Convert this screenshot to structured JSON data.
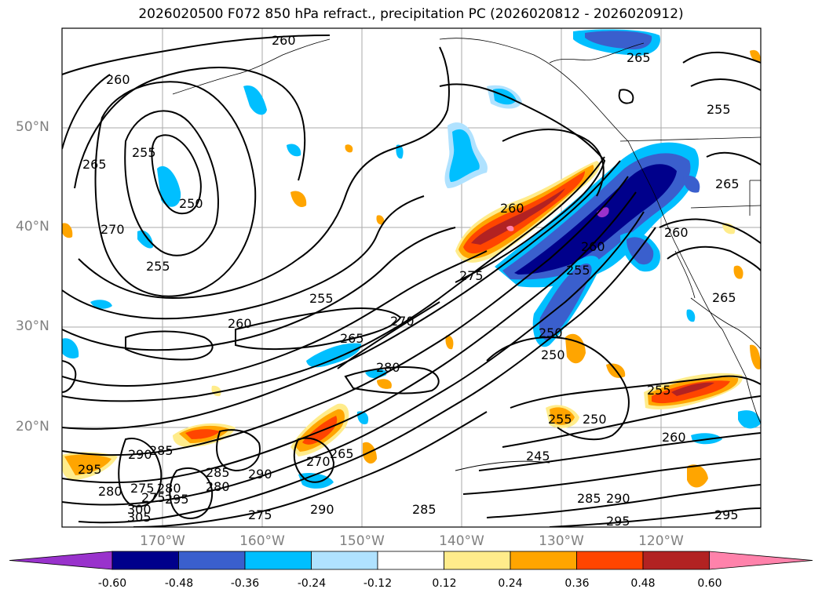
{
  "title": "2026020500 F072 850 hPa refract., precipitation PC (2026020812 - 2026020912)",
  "lat_labels": [
    "50°N",
    "40°N",
    "30°N",
    "20°N"
  ],
  "lon_labels": [
    "170°W",
    "160°W",
    "150°W",
    "140°W",
    "130°W",
    "120°W"
  ],
  "contour_labels": [
    "260",
    "260",
    "265",
    "255",
    "250",
    "270",
    "255",
    "260",
    "255",
    "265",
    "275",
    "280",
    "270",
    "260",
    "255",
    "250",
    "265",
    "260",
    "255",
    "250",
    "245",
    "285",
    "290",
    "295",
    "290",
    "285",
    "280",
    "275",
    "270",
    "265",
    "260",
    "255",
    "295",
    "290",
    "285",
    "280",
    "275",
    "295",
    "300",
    "305",
    "285",
    "280",
    "275",
    "290",
    "295",
    "250",
    "255",
    "260",
    "265",
    "265"
  ],
  "colorbar": {
    "ticks": [
      "-0.60",
      "-0.48",
      "-0.36",
      "-0.24",
      "-0.12",
      "0.12",
      "0.24",
      "0.36",
      "0.48",
      "0.60"
    ],
    "colors": [
      "#9932cc",
      "#00008b",
      "#3a5fcd",
      "#00bfff",
      "#b0e2ff",
      "#ffffff",
      "#ffec8b",
      "#ffa500",
      "#ff4500",
      "#b22222",
      "#ff82ab"
    ]
  },
  "colors": {
    "land_line": "#000000",
    "grid": "#aaaaaa",
    "neg_light": "#b0e2ff",
    "neg_mid": "#00bfff",
    "neg_dark": "#3a5fcd",
    "neg_darkest": "#00008b",
    "pos_light": "#ffec8b",
    "pos_mid": "#ffa500",
    "pos_dark": "#ff4500",
    "pos_darkest": "#b22222",
    "pos_max": "#ff82ab"
  }
}
